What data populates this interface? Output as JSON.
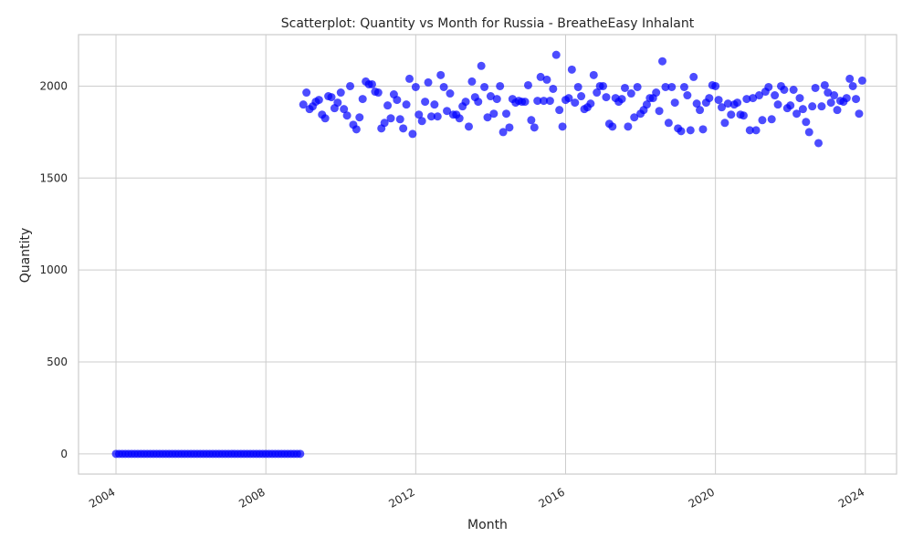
{
  "chart_data": {
    "type": "scatter",
    "title": "Scatterplot: Quantity vs Month for Russia - BreatheEasy Inhalant",
    "xlabel": "Month",
    "ylabel": "Quantity",
    "x_ticks": [
      "2004",
      "2008",
      "2012",
      "2016",
      "2020",
      "2024"
    ],
    "y_ticks": [
      0,
      500,
      1000,
      1500,
      2000
    ],
    "xlim": [
      "2003-01",
      "2024-11"
    ],
    "ylim": [
      -110,
      2280
    ],
    "grid": true,
    "marker_color": "#0000ff",
    "marker_opacity": 0.7,
    "series": [
      {
        "zero_period": {
          "start": "2004-01",
          "end": "2008-12",
          "value": 0
        },
        "points": [
          [
            "2009-01",
            1900
          ],
          [
            "2009-02",
            1965
          ],
          [
            "2009-03",
            1875
          ],
          [
            "2009-04",
            1890
          ],
          [
            "2009-05",
            1915
          ],
          [
            "2009-06",
            1925
          ],
          [
            "2009-07",
            1845
          ],
          [
            "2009-08",
            1825
          ],
          [
            "2009-09",
            1945
          ],
          [
            "2009-10",
            1940
          ],
          [
            "2009-11",
            1880
          ],
          [
            "2009-12",
            1910
          ],
          [
            "2010-01",
            1965
          ],
          [
            "2010-02",
            1875
          ],
          [
            "2010-03",
            1840
          ],
          [
            "2010-04",
            2000
          ],
          [
            "2010-05",
            1790
          ],
          [
            "2010-06",
            1765
          ],
          [
            "2010-07",
            1830
          ],
          [
            "2010-08",
            1930
          ],
          [
            "2010-09",
            2025
          ],
          [
            "2010-10",
            2010
          ],
          [
            "2010-11",
            2010
          ],
          [
            "2010-12",
            1970
          ],
          [
            "2011-01",
            1965
          ],
          [
            "2011-02",
            1770
          ],
          [
            "2011-03",
            1800
          ],
          [
            "2011-04",
            1895
          ],
          [
            "2011-05",
            1825
          ],
          [
            "2011-06",
            1955
          ],
          [
            "2011-07",
            1925
          ],
          [
            "2011-08",
            1820
          ],
          [
            "2011-09",
            1770
          ],
          [
            "2011-10",
            1900
          ],
          [
            "2011-11",
            2040
          ],
          [
            "2011-12",
            1740
          ],
          [
            "2012-01",
            1995
          ],
          [
            "2012-02",
            1845
          ],
          [
            "2012-03",
            1810
          ],
          [
            "2012-04",
            1915
          ],
          [
            "2012-05",
            2020
          ],
          [
            "2012-06",
            1835
          ],
          [
            "2012-07",
            1900
          ],
          [
            "2012-08",
            1835
          ],
          [
            "2012-09",
            2060
          ],
          [
            "2012-10",
            1995
          ],
          [
            "2012-11",
            1865
          ],
          [
            "2012-12",
            1960
          ],
          [
            "2013-01",
            1845
          ],
          [
            "2013-02",
            1845
          ],
          [
            "2013-03",
            1825
          ],
          [
            "2013-04",
            1890
          ],
          [
            "2013-05",
            1915
          ],
          [
            "2013-06",
            1780
          ],
          [
            "2013-07",
            2025
          ],
          [
            "2013-08",
            1940
          ],
          [
            "2013-09",
            1915
          ],
          [
            "2013-10",
            2110
          ],
          [
            "2013-11",
            1995
          ],
          [
            "2013-12",
            1830
          ],
          [
            "2014-01",
            1945
          ],
          [
            "2014-02",
            1850
          ],
          [
            "2014-03",
            1930
          ],
          [
            "2014-04",
            2000
          ],
          [
            "2014-05",
            1750
          ],
          [
            "2014-06",
            1850
          ],
          [
            "2014-07",
            1775
          ],
          [
            "2014-08",
            1930
          ],
          [
            "2014-09",
            1910
          ],
          [
            "2014-10",
            1920
          ],
          [
            "2014-11",
            1915
          ],
          [
            "2014-12",
            1915
          ],
          [
            "2015-01",
            2005
          ],
          [
            "2015-02",
            1815
          ],
          [
            "2015-03",
            1775
          ],
          [
            "2015-04",
            1920
          ],
          [
            "2015-05",
            2050
          ],
          [
            "2015-06",
            1920
          ],
          [
            "2015-07",
            2035
          ],
          [
            "2015-08",
            1920
          ],
          [
            "2015-09",
            1985
          ],
          [
            "2015-10",
            2170
          ],
          [
            "2015-11",
            1870
          ],
          [
            "2015-12",
            1780
          ],
          [
            "2016-01",
            1925
          ],
          [
            "2016-02",
            1935
          ],
          [
            "2016-03",
            2090
          ],
          [
            "2016-04",
            1910
          ],
          [
            "2016-05",
            1995
          ],
          [
            "2016-06",
            1945
          ],
          [
            "2016-07",
            1875
          ],
          [
            "2016-08",
            1885
          ],
          [
            "2016-09",
            1905
          ],
          [
            "2016-10",
            2060
          ],
          [
            "2016-11",
            1965
          ],
          [
            "2016-12",
            2000
          ],
          [
            "2017-01",
            2000
          ],
          [
            "2017-02",
            1940
          ],
          [
            "2017-03",
            1795
          ],
          [
            "2017-04",
            1780
          ],
          [
            "2017-05",
            1935
          ],
          [
            "2017-06",
            1915
          ],
          [
            "2017-07",
            1930
          ],
          [
            "2017-08",
            1990
          ],
          [
            "2017-09",
            1780
          ],
          [
            "2017-10",
            1960
          ],
          [
            "2017-11",
            1830
          ],
          [
            "2017-12",
            1995
          ],
          [
            "2018-01",
            1850
          ],
          [
            "2018-02",
            1870
          ],
          [
            "2018-03",
            1900
          ],
          [
            "2018-04",
            1935
          ],
          [
            "2018-05",
            1935
          ],
          [
            "2018-06",
            1965
          ],
          [
            "2018-07",
            1865
          ],
          [
            "2018-08",
            2135
          ],
          [
            "2018-09",
            1995
          ],
          [
            "2018-10",
            1800
          ],
          [
            "2018-11",
            1995
          ],
          [
            "2018-12",
            1910
          ],
          [
            "2019-01",
            1770
          ],
          [
            "2019-02",
            1755
          ],
          [
            "2019-03",
            1995
          ],
          [
            "2019-04",
            1950
          ],
          [
            "2019-05",
            1760
          ],
          [
            "2019-06",
            2050
          ],
          [
            "2019-07",
            1905
          ],
          [
            "2019-08",
            1870
          ],
          [
            "2019-09",
            1765
          ],
          [
            "2019-10",
            1910
          ],
          [
            "2019-11",
            1935
          ],
          [
            "2019-12",
            2005
          ],
          [
            "2020-01",
            2000
          ],
          [
            "2020-02",
            1925
          ],
          [
            "2020-03",
            1885
          ],
          [
            "2020-04",
            1800
          ],
          [
            "2020-05",
            1905
          ],
          [
            "2020-06",
            1845
          ],
          [
            "2020-07",
            1900
          ],
          [
            "2020-08",
            1910
          ],
          [
            "2020-09",
            1845
          ],
          [
            "2020-10",
            1840
          ],
          [
            "2020-11",
            1930
          ],
          [
            "2020-12",
            1760
          ],
          [
            "2021-01",
            1935
          ],
          [
            "2021-02",
            1760
          ],
          [
            "2021-03",
            1950
          ],
          [
            "2021-04",
            1815
          ],
          [
            "2021-05",
            1970
          ],
          [
            "2021-06",
            1995
          ],
          [
            "2021-07",
            1820
          ],
          [
            "2021-08",
            1950
          ],
          [
            "2021-09",
            1900
          ],
          [
            "2021-10",
            2000
          ],
          [
            "2021-11",
            1980
          ],
          [
            "2021-12",
            1880
          ],
          [
            "2022-01",
            1895
          ],
          [
            "2022-02",
            1980
          ],
          [
            "2022-03",
            1850
          ],
          [
            "2022-04",
            1935
          ],
          [
            "2022-05",
            1875
          ],
          [
            "2022-06",
            1805
          ],
          [
            "2022-07",
            1750
          ],
          [
            "2022-08",
            1890
          ],
          [
            "2022-09",
            1990
          ],
          [
            "2022-10",
            1690
          ],
          [
            "2022-11",
            1890
          ],
          [
            "2022-12",
            2005
          ],
          [
            "2023-01",
            1965
          ],
          [
            "2023-02",
            1910
          ],
          [
            "2023-03",
            1950
          ],
          [
            "2023-04",
            1870
          ],
          [
            "2023-05",
            1920
          ],
          [
            "2023-06",
            1915
          ],
          [
            "2023-07",
            1935
          ],
          [
            "2023-08",
            2040
          ],
          [
            "2023-09",
            2000
          ],
          [
            "2023-10",
            1930
          ],
          [
            "2023-11",
            1850
          ],
          [
            "2023-12",
            2030
          ]
        ]
      }
    ]
  }
}
